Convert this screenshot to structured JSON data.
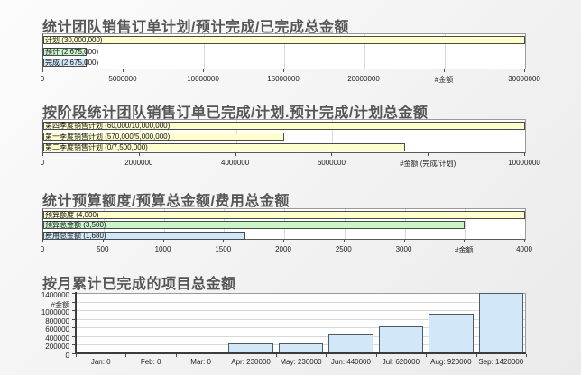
{
  "chart_data": [
    {
      "type": "bar",
      "orientation": "horizontal",
      "title": "统计团队销售订单计划/预计完成/已完成总金额",
      "xlabel": "#金额",
      "xlim": [
        0,
        30000000
      ],
      "grid": true,
      "xticks": [
        {
          "v": 0,
          "label": "0"
        },
        {
          "v": 5000000,
          "label": "5000000"
        },
        {
          "v": 10000000,
          "label": "10000000"
        },
        {
          "v": 15000000,
          "label": "15000000"
        },
        {
          "v": 20000000,
          "label": "20000000"
        },
        {
          "v": 25000000,
          "label": "#金额"
        },
        {
          "v": 30000000,
          "label": "30000000"
        }
      ],
      "bars": [
        {
          "name": "计划",
          "label": "计划 (30,000,000)",
          "value": 30000000,
          "color": "#ffffcc"
        },
        {
          "name": "预计",
          "label": "预计 (2,675,000)",
          "value": 2675000,
          "color": "#c9f5c9"
        },
        {
          "name": "完成",
          "label": "完成 (2,675,000)",
          "value": 2675000,
          "color": "#cfe6f7"
        }
      ]
    },
    {
      "type": "bar",
      "orientation": "horizontal",
      "title": "按阶段统计团队销售订单已完成/计划.预计完成/计划总金额",
      "xlabel": "#金额 (完成/计划)",
      "xlim": [
        0,
        10000000
      ],
      "grid": true,
      "xticks": [
        {
          "v": 0,
          "label": "0"
        },
        {
          "v": 2000000,
          "label": "2000000"
        },
        {
          "v": 4000000,
          "label": "4000000"
        },
        {
          "v": 6000000,
          "label": "6000000"
        },
        {
          "v": 8000000,
          "label": "#金额 (完成/计划)"
        },
        {
          "v": 10000000,
          "label": "10000000"
        }
      ],
      "bars": [
        {
          "name": "第四季度销售计划",
          "label": "第四季度销售计划 (60,000/10,000,000)",
          "completed": 60000,
          "planned": 10000000,
          "value": 10000000,
          "color": "#ffffcc"
        },
        {
          "name": "第一季度销售计划",
          "label": "第一季度销售计划 (570,000/5,000,000)",
          "completed": 570000,
          "planned": 5000000,
          "value": 5000000,
          "color": "#ffffcc"
        },
        {
          "name": "第二季度销售计划",
          "label": "第二季度销售计划 (0/7,500,000)",
          "completed": 0,
          "planned": 7500000,
          "value": 7500000,
          "color": "#ffffcc"
        }
      ]
    },
    {
      "type": "bar",
      "orientation": "horizontal",
      "title": "统计预算额度/预算总金额/费用总金额",
      "xlabel": "#金额",
      "xlim": [
        0,
        4000
      ],
      "grid": true,
      "xticks": [
        {
          "v": 0,
          "label": "0"
        },
        {
          "v": 500,
          "label": "500"
        },
        {
          "v": 1000,
          "label": "1000"
        },
        {
          "v": 1500,
          "label": "1500"
        },
        {
          "v": 2000,
          "label": "2000"
        },
        {
          "v": 2500,
          "label": "2500"
        },
        {
          "v": 3000,
          "label": "3000"
        },
        {
          "v": 3500,
          "label": "#金额"
        },
        {
          "v": 4000,
          "label": "4000"
        }
      ],
      "bars": [
        {
          "name": "预算额度",
          "label": "预算额度 (4,000)",
          "value": 4000,
          "color": "#ffffcc"
        },
        {
          "name": "预算总金额",
          "label": "预算总金额 (3,500)",
          "value": 3500,
          "color": "#c9f5c9"
        },
        {
          "name": "费用总金额",
          "label": "费用总金额 (1,680)",
          "value": 1680,
          "color": "#cfe6f7"
        }
      ]
    },
    {
      "type": "bar",
      "orientation": "vertical",
      "title": "按月累计已完成的项目总金额",
      "ylabel": "#金额",
      "ylim": [
        0,
        1400000
      ],
      "grid": true,
      "bar_color": "#d2e8f8",
      "yticks": [
        {
          "v": 0,
          "label": "0"
        },
        {
          "v": 200000,
          "label": "200000"
        },
        {
          "v": 400000,
          "label": "400000"
        },
        {
          "v": 600000,
          "label": "600000"
        },
        {
          "v": 800000,
          "label": "800000"
        },
        {
          "v": 1000000,
          "label": "1000000"
        },
        {
          "v": 1200000,
          "label": "#金额"
        },
        {
          "v": 1400000,
          "label": "1400000"
        }
      ],
      "columns": [
        {
          "label": "Jan: 0",
          "value": 0
        },
        {
          "label": "Feb: 0",
          "value": 0
        },
        {
          "label": "Mar: 0",
          "value": 0
        },
        {
          "label": "Apr: 230000",
          "value": 230000
        },
        {
          "label": "May: 230000",
          "value": 230000
        },
        {
          "label": "Jun: 440000",
          "value": 440000
        },
        {
          "label": "Jul: 620000",
          "value": 620000
        },
        {
          "label": "Aug: 920000",
          "value": 920000
        },
        {
          "label": "Sep: 1420000",
          "value": 1420000
        }
      ]
    }
  ]
}
